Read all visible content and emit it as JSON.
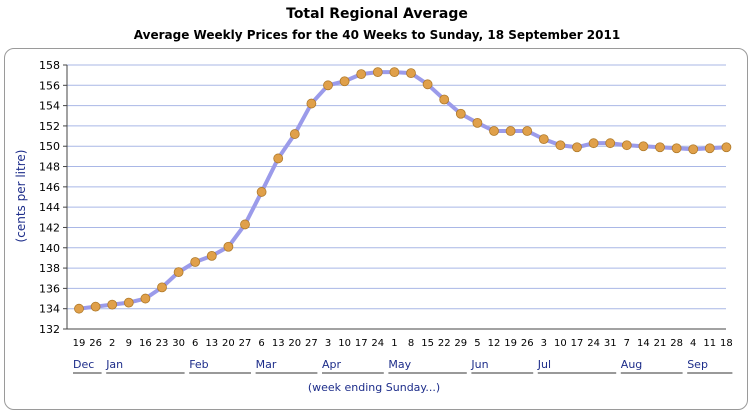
{
  "chart_data": {
    "type": "line",
    "title": "Total Regional Average",
    "subtitle": "Average Weekly Prices for the 40 Weeks to Sunday, 18 September 2011",
    "ylabel": "(cents per litre)",
    "xlabel": "(week ending Sunday...)",
    "ylim": [
      132,
      158
    ],
    "ytick_step": 2,
    "grid": true,
    "x": [
      "19",
      "26",
      "2",
      "9",
      "16",
      "23",
      "30",
      "6",
      "13",
      "20",
      "27",
      "6",
      "13",
      "20",
      "27",
      "3",
      "10",
      "17",
      "24",
      "1",
      "8",
      "15",
      "22",
      "29",
      "5",
      "12",
      "19",
      "26",
      "3",
      "10",
      "17",
      "24",
      "31",
      "7",
      "14",
      "21",
      "28",
      "4",
      "11",
      "18"
    ],
    "months": [
      {
        "label": "Dec",
        "start": 0,
        "end": 1
      },
      {
        "label": "Jan",
        "start": 2,
        "end": 6
      },
      {
        "label": "Feb",
        "start": 7,
        "end": 10
      },
      {
        "label": "Mar",
        "start": 11,
        "end": 14
      },
      {
        "label": "Apr",
        "start": 15,
        "end": 18
      },
      {
        "label": "May",
        "start": 19,
        "end": 23
      },
      {
        "label": "Jun",
        "start": 24,
        "end": 27
      },
      {
        "label": "Jul",
        "start": 28,
        "end": 32
      },
      {
        "label": "Aug",
        "start": 33,
        "end": 36
      },
      {
        "label": "Sep",
        "start": 37,
        "end": 39
      }
    ],
    "series": [
      {
        "values": [
          134.0,
          134.2,
          134.4,
          134.6,
          135.0,
          136.1,
          137.6,
          138.6,
          139.2,
          140.1,
          142.3,
          145.5,
          148.8,
          151.2,
          154.2,
          156.0,
          156.4,
          157.1,
          157.3,
          157.3,
          157.2,
          156.1,
          154.6,
          153.2,
          152.3,
          151.5,
          151.5,
          151.5,
          150.7,
          150.1,
          149.9,
          150.3,
          150.3,
          150.1,
          150.0,
          149.9,
          149.8,
          149.7,
          149.8,
          149.9
        ]
      }
    ],
    "colors": {
      "line": "#9b9bea",
      "marker": "#e0a04a",
      "marker_edge": "#b07a2a",
      "grid": "#a9b7e6",
      "axis": "#444444"
    }
  }
}
